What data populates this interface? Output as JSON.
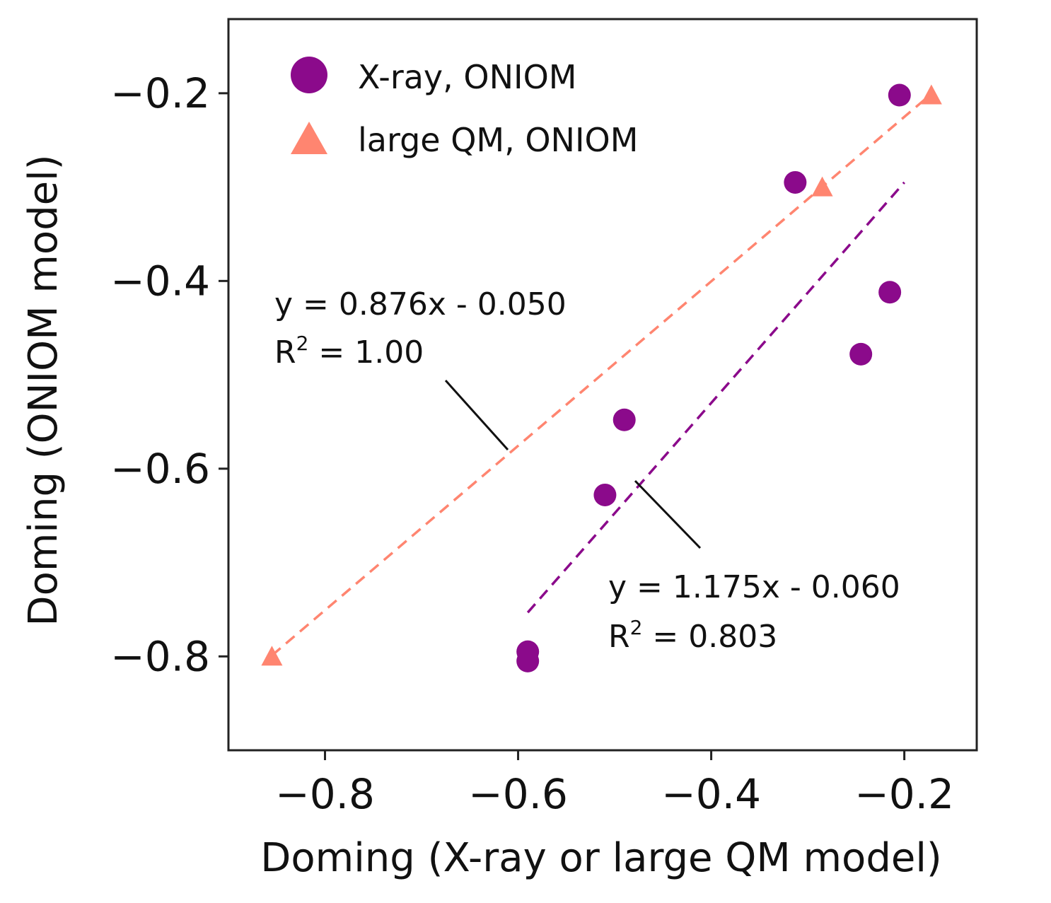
{
  "chart_data": {
    "type": "scatter",
    "title": "",
    "xlabel": "Doming (X-ray or large QM model)",
    "ylabel": "Doming (ONIOM model)",
    "xlim": [
      -0.9,
      -0.125
    ],
    "ylim": [
      -0.9,
      -0.121
    ],
    "xticks": [
      -0.8,
      -0.6,
      -0.4,
      -0.2
    ],
    "yticks": [
      -0.8,
      -0.6,
      -0.4,
      -0.2
    ],
    "xtick_labels": [
      "−0.8",
      "−0.6",
      "−0.4",
      "−0.2"
    ],
    "ytick_labels": [
      "−0.8",
      "−0.6",
      "−0.4",
      "−0.2"
    ],
    "legend_position": "top-left",
    "series": [
      {
        "name": "X-ray, ONIOM",
        "marker": "circle",
        "color": "#8b0a8b",
        "points": [
          {
            "x": -0.59,
            "y": -0.795
          },
          {
            "x": -0.59,
            "y": -0.805
          },
          {
            "x": -0.51,
            "y": -0.628
          },
          {
            "x": -0.49,
            "y": -0.548
          },
          {
            "x": -0.313,
            "y": -0.295
          },
          {
            "x": -0.245,
            "y": -0.478
          },
          {
            "x": -0.215,
            "y": -0.412
          },
          {
            "x": -0.205,
            "y": -0.202
          }
        ],
        "fit": {
          "slope": 1.175,
          "intercept": -0.06,
          "x_range": [
            -0.59,
            -0.2
          ],
          "color": "#8b0a8b",
          "equation": "y = 1.175x - 0.060",
          "r2_prefix": "R",
          "r2_exp": "2",
          "r2_value": " = 0.803"
        }
      },
      {
        "name": "large QM, ONIOM",
        "marker": "triangle",
        "color": "#ff8570",
        "points": [
          {
            "x": -0.855,
            "y": -0.8
          },
          {
            "x": -0.285,
            "y": -0.3
          },
          {
            "x": -0.172,
            "y": -0.202
          }
        ],
        "fit": {
          "slope": 0.876,
          "intercept": -0.05,
          "x_range": [
            -0.855,
            -0.172
          ],
          "color": "#ff8570",
          "equation": "y = 0.876x - 0.050",
          "r2_prefix": "R",
          "r2_exp": "2",
          "r2_value": " = 1.00"
        }
      }
    ]
  }
}
